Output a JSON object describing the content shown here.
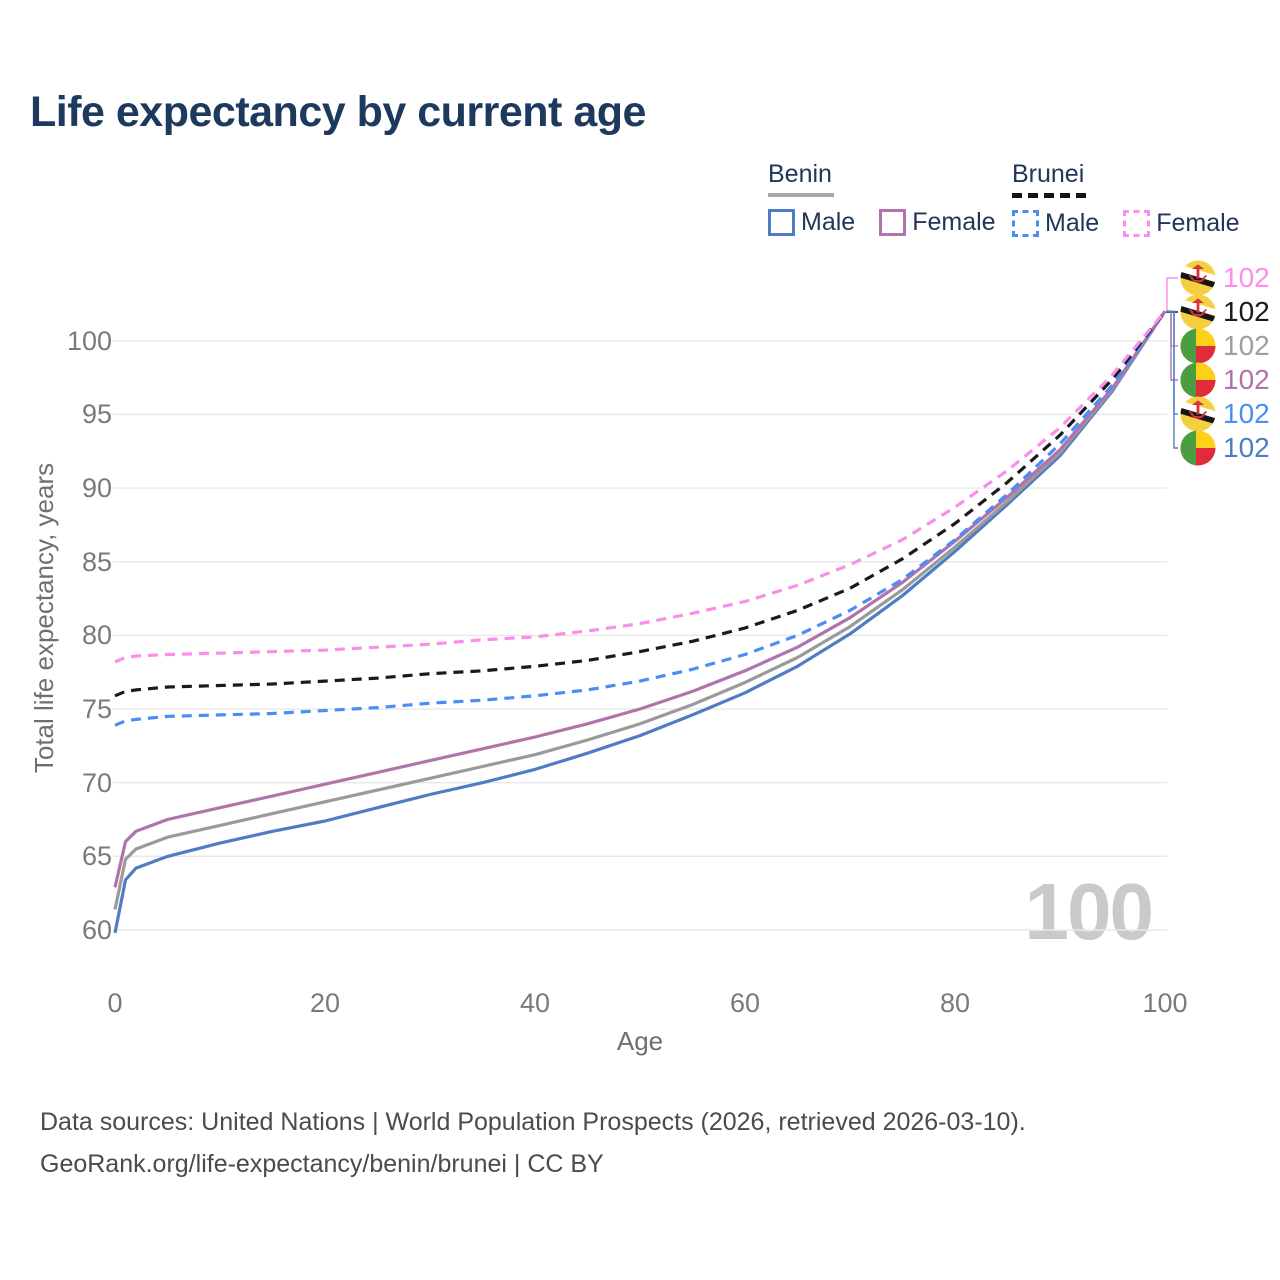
{
  "title": "Life expectancy by current age",
  "legend": {
    "groups": [
      {
        "label": "Benin",
        "line_style": "solid",
        "underline_color": "#a8a8a8",
        "items": [
          {
            "label": "Male",
            "color": "#4f7dc3"
          },
          {
            "label": "Female",
            "color": "#b173ab"
          }
        ]
      },
      {
        "label": "Brunei",
        "line_style": "dashed",
        "underline_color": "#141414",
        "items": [
          {
            "label": "Male",
            "color": "#4a8ef5"
          },
          {
            "label": "Female",
            "color": "#fc8deb"
          }
        ]
      }
    ]
  },
  "chart_data": {
    "type": "line",
    "title": "Life expectancy by current age",
    "xlabel": "Age",
    "ylabel": "Total life expectancy, years",
    "xlim": [
      0,
      100
    ],
    "ylim": [
      58.5,
      103
    ],
    "xticks": [
      0,
      20,
      40,
      60,
      80,
      100
    ],
    "yticks": [
      60,
      65,
      70,
      75,
      80,
      85,
      90,
      95,
      100
    ],
    "grid": "horizontal",
    "legend_position": "top-right",
    "x": [
      0,
      1,
      2,
      5,
      10,
      15,
      20,
      25,
      30,
      35,
      40,
      45,
      50,
      55,
      60,
      65,
      70,
      75,
      80,
      85,
      90,
      95,
      100
    ],
    "series": [
      {
        "name": "Benin Male",
        "country": "Benin",
        "sex": "male",
        "color": "#4f7dc3",
        "dash": false,
        "values": [
          59.8,
          63.4,
          64.2,
          65.0,
          65.9,
          66.7,
          67.4,
          68.3,
          69.2,
          70.0,
          70.9,
          72.0,
          73.2,
          74.6,
          76.1,
          77.9,
          80.1,
          82.7,
          85.7,
          88.9,
          92.2,
          96.6,
          102
        ]
      },
      {
        "name": "Benin",
        "country": "Benin",
        "sex": "total",
        "color": "#9a9a9a",
        "dash": false,
        "values": [
          61.4,
          64.8,
          65.5,
          66.3,
          67.1,
          67.9,
          68.7,
          69.5,
          70.3,
          71.1,
          71.9,
          72.9,
          74.0,
          75.3,
          76.8,
          78.5,
          80.6,
          83.1,
          86.0,
          89.1,
          92.4,
          96.7,
          102
        ]
      },
      {
        "name": "Benin Female",
        "country": "Benin",
        "sex": "female",
        "color": "#b173ab",
        "dash": false,
        "values": [
          62.9,
          66.0,
          66.7,
          67.5,
          68.3,
          69.1,
          69.9,
          70.7,
          71.5,
          72.3,
          73.1,
          74.0,
          75.0,
          76.2,
          77.6,
          79.2,
          81.2,
          83.6,
          86.4,
          89.4,
          92.6,
          96.8,
          102
        ]
      },
      {
        "name": "Brunei Male",
        "country": "Brunei",
        "sex": "male",
        "color": "#4a8ef5",
        "dash": true,
        "values": [
          73.9,
          74.2,
          74.3,
          74.5,
          74.6,
          74.7,
          74.9,
          75.1,
          75.4,
          75.6,
          75.9,
          76.3,
          76.9,
          77.7,
          78.7,
          80.0,
          81.7,
          83.8,
          86.5,
          89.6,
          93.0,
          97.0,
          102
        ]
      },
      {
        "name": "Brunei",
        "country": "Brunei",
        "sex": "total",
        "color": "#1a1a1a",
        "dash": true,
        "values": [
          75.9,
          76.2,
          76.3,
          76.5,
          76.6,
          76.7,
          76.9,
          77.1,
          77.4,
          77.6,
          77.9,
          78.3,
          78.9,
          79.6,
          80.5,
          81.7,
          83.2,
          85.2,
          87.6,
          90.4,
          93.6,
          97.4,
          102
        ]
      },
      {
        "name": "Brunei Female",
        "country": "Brunei",
        "sex": "female",
        "color": "#fc8deb",
        "dash": true,
        "values": [
          78.2,
          78.5,
          78.6,
          78.7,
          78.8,
          78.9,
          79.0,
          79.2,
          79.4,
          79.7,
          79.9,
          80.3,
          80.8,
          81.5,
          82.3,
          83.4,
          84.8,
          86.5,
          88.7,
          91.2,
          94.1,
          97.7,
          102
        ]
      }
    ]
  },
  "end_labels": [
    {
      "flag": "brunei",
      "series": "Brunei Female",
      "value": "102",
      "color": "#fc8deb"
    },
    {
      "flag": "brunei",
      "series": "Brunei",
      "value": "102",
      "color": "#1a1a1a"
    },
    {
      "flag": "benin",
      "series": "Benin",
      "value": "102",
      "color": "#9e9e9e"
    },
    {
      "flag": "benin",
      "series": "Benin Female",
      "value": "102",
      "color": "#b173ab"
    },
    {
      "flag": "brunei",
      "series": "Brunei Male",
      "value": "102",
      "color": "#4a8ef5"
    },
    {
      "flag": "benin",
      "series": "Benin Male",
      "value": "102",
      "color": "#4f7dc3"
    }
  ],
  "watermark": "100",
  "footer": {
    "line1": "Data sources: United Nations | World Population Prospects (2026, retrieved 2026-03-10).",
    "line2": "GeoRank.org/life-expectancy/benin/brunei | CC BY"
  },
  "colors": {
    "title": "#1d3a5e",
    "grid": "#e8e8e8",
    "tick_text": "#7a7a7a",
    "axis_title_text": "#6f6f6f",
    "watermark": "#cacaca",
    "footer_text": "#4b4b4b",
    "flag_benin": {
      "green": "#4a9e41",
      "yellow": "#fcd118",
      "red": "#e02c3a"
    },
    "flag_brunei": {
      "yellow": "#f6cf3e",
      "white": "#ffffff",
      "black": "#151515",
      "red": "#d6333f"
    }
  }
}
